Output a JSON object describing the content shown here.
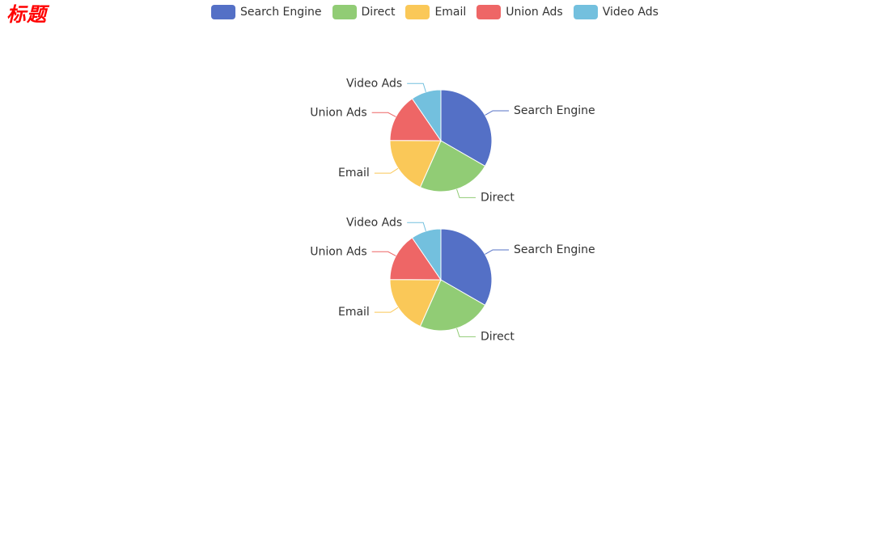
{
  "title": "标题",
  "legend": {
    "items": [
      {
        "label": "Search Engine",
        "color": "#5470c6"
      },
      {
        "label": "Direct",
        "color": "#91cc75"
      },
      {
        "label": "Email",
        "color": "#fac858"
      },
      {
        "label": "Union Ads",
        "color": "#ee6666"
      },
      {
        "label": "Video Ads",
        "color": "#73c0de"
      }
    ]
  },
  "chart_data": [
    {
      "type": "pie",
      "title": "",
      "slices": [
        {
          "name": "Search Engine",
          "value": 1048
        },
        {
          "name": "Direct",
          "value": 735
        },
        {
          "name": "Email",
          "value": 580
        },
        {
          "name": "Union Ads",
          "value": 484
        },
        {
          "name": "Video Ads",
          "value": 300
        }
      ],
      "colors": [
        "#5470c6",
        "#91cc75",
        "#fac858",
        "#ee6666",
        "#73c0de"
      ],
      "legend_position": "top-center"
    },
    {
      "type": "pie",
      "title": "",
      "slices": [
        {
          "name": "Search Engine",
          "value": 1048
        },
        {
          "name": "Direct",
          "value": 735
        },
        {
          "name": "Email",
          "value": 580
        },
        {
          "name": "Union Ads",
          "value": 484
        },
        {
          "name": "Video Ads",
          "value": 300
        }
      ],
      "colors": [
        "#5470c6",
        "#91cc75",
        "#fac858",
        "#ee6666",
        "#73c0de"
      ],
      "legend_position": "top-center"
    }
  ]
}
